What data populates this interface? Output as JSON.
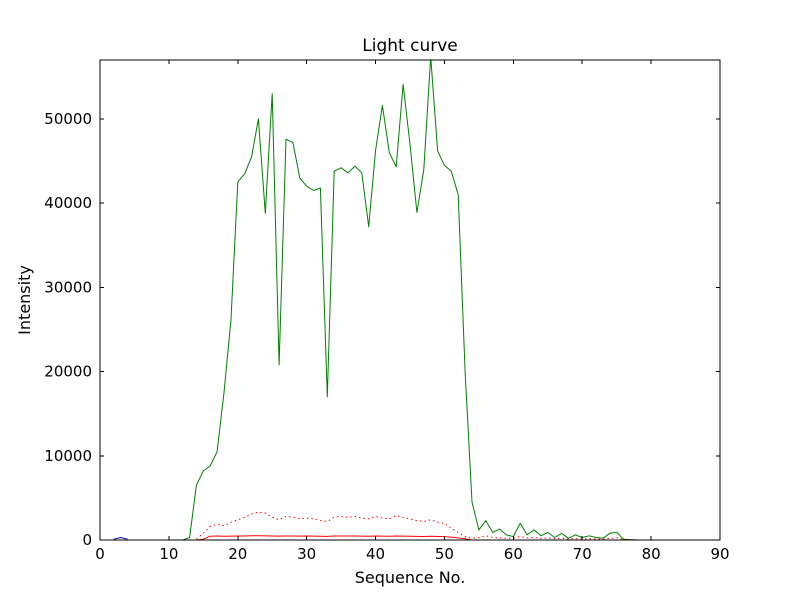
{
  "chart_data": {
    "type": "line",
    "title": "Light curve",
    "xlabel": "Sequence No.",
    "ylabel": "Intensity",
    "xlim": [
      0,
      90
    ],
    "ylim": [
      0,
      57000
    ],
    "xticks": [
      0,
      10,
      20,
      30,
      40,
      50,
      60,
      70,
      80,
      90
    ],
    "yticks": [
      0,
      10000,
      20000,
      30000,
      40000,
      50000
    ],
    "grid": false,
    "legend": false,
    "background": "#ffffff",
    "frame_color": "#000000",
    "series": [
      {
        "name": "intensity-main-green",
        "color": "#008000",
        "style": "solid",
        "x": [
          12,
          13,
          14,
          15,
          16,
          17,
          18,
          19,
          20,
          21,
          22,
          23,
          24,
          25,
          26,
          27,
          28,
          29,
          30,
          31,
          32,
          33,
          34,
          35,
          36,
          37,
          38,
          39,
          40,
          41,
          42,
          43,
          44,
          45,
          46,
          47,
          48,
          49,
          50,
          51,
          52,
          53,
          54,
          55,
          56,
          57,
          58,
          59,
          60,
          61,
          62,
          63,
          64,
          65,
          66,
          67,
          68,
          69,
          70,
          71,
          72,
          73,
          74,
          75,
          76,
          77,
          78,
          79,
          80,
          81,
          82,
          83,
          84,
          85,
          86,
          87
        ],
        "y": [
          0,
          300,
          6500,
          8200,
          8800,
          10500,
          17500,
          26000,
          42500,
          43500,
          45500,
          50000,
          38800,
          53000,
          20800,
          47600,
          47200,
          43000,
          42000,
          41500,
          41800,
          17000,
          43800,
          44200,
          43600,
          44400,
          43600,
          37200,
          46300,
          51600,
          46000,
          44300,
          54100,
          47000,
          38900,
          44000,
          57400,
          46200,
          44500,
          43800,
          41000,
          20000,
          4500,
          1200,
          2300,
          900,
          1300,
          600,
          400,
          2000,
          600,
          1200,
          500,
          900,
          300,
          800,
          200,
          600,
          300,
          500,
          300,
          200,
          800,
          900,
          100,
          50,
          0,
          0,
          0,
          0,
          0,
          0,
          0,
          0,
          0,
          0
        ]
      },
      {
        "name": "intensity-background-dotted-red",
        "color": "#ff0000",
        "style": "dotted",
        "x": [
          14,
          15,
          16,
          17,
          18,
          19,
          20,
          21,
          22,
          23,
          24,
          25,
          26,
          27,
          28,
          29,
          30,
          31,
          32,
          33,
          34,
          35,
          36,
          37,
          38,
          39,
          40,
          41,
          42,
          43,
          44,
          45,
          46,
          47,
          48,
          49,
          50,
          51,
          52,
          53,
          54,
          55,
          56,
          57,
          58,
          59,
          60,
          61,
          62,
          63,
          64,
          65,
          66,
          67,
          68,
          69,
          70,
          71,
          72,
          73,
          74,
          75,
          76,
          77
        ],
        "y": [
          100,
          800,
          1600,
          1900,
          1700,
          2100,
          2400,
          2700,
          3100,
          3300,
          3200,
          2700,
          2400,
          2800,
          2700,
          2500,
          2600,
          2500,
          2300,
          2200,
          2700,
          2800,
          2700,
          2800,
          2600,
          2500,
          2800,
          2600,
          2500,
          2900,
          2700,
          2500,
          2300,
          2200,
          2400,
          2100,
          2000,
          1400,
          900,
          400,
          200,
          300,
          500,
          300,
          250,
          200,
          250,
          400,
          250,
          300,
          200,
          250,
          150,
          200,
          120,
          180,
          100,
          150,
          120,
          100,
          200,
          250,
          80,
          30
        ]
      },
      {
        "name": "intensity-baseline-solid-red",
        "color": "#ff0000",
        "style": "solid",
        "x": [
          14,
          15,
          16,
          17,
          18,
          19,
          20,
          21,
          22,
          23,
          24,
          25,
          26,
          27,
          28,
          29,
          30,
          31,
          32,
          33,
          34,
          35,
          36,
          37,
          38,
          39,
          40,
          41,
          42,
          43,
          44,
          45,
          46,
          47,
          48,
          49,
          50,
          51,
          52,
          53,
          54
        ],
        "y": [
          0,
          100,
          450,
          470,
          450,
          460,
          470,
          480,
          500,
          500,
          490,
          480,
          460,
          480,
          470,
          460,
          470,
          460,
          450,
          430,
          470,
          480,
          470,
          480,
          460,
          450,
          470,
          460,
          450,
          480,
          460,
          450,
          430,
          420,
          440,
          410,
          400,
          350,
          250,
          150,
          0
        ]
      },
      {
        "name": "start-marker-blue",
        "color": "#0000cc",
        "style": "solid",
        "x": [
          2,
          3,
          4
        ],
        "y": [
          100,
          300,
          100
        ]
      }
    ]
  }
}
